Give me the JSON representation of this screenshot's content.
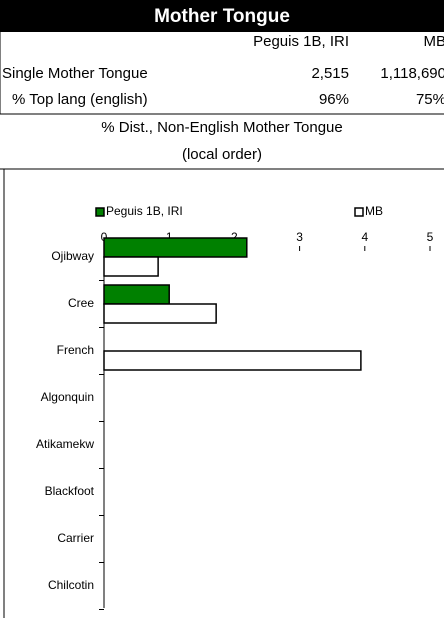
{
  "header": {
    "title": "Mother Tongue"
  },
  "table": {
    "columns": [
      "Peguis 1B, IRI",
      "MB"
    ],
    "rows": [
      [
        "Single Mother Tongue",
        "2,515",
        "1,118,690"
      ],
      [
        "% Top lang (english)",
        "96%",
        "75%"
      ]
    ]
  },
  "chart_data": {
    "type": "bar",
    "orientation": "horizontal",
    "title": "% Dist., Non-English Mother Tongue",
    "subtitle": "(local order)",
    "categories": [
      "Ojibway",
      "Cree",
      "French",
      "Algonquin",
      "Atikamekw",
      "Blackfoot",
      "Carrier",
      "Chilcotin"
    ],
    "series": [
      {
        "name": "Peguis 1B, IRI",
        "color": "#008000",
        "values": [
          2.19,
          1.0,
          0,
          0,
          0,
          0,
          0,
          0
        ]
      },
      {
        "name": "MB",
        "color": "#ffffff",
        "values": [
          0.83,
          1.72,
          3.94,
          0,
          0,
          0,
          0,
          0
        ]
      }
    ],
    "xlim": [
      0,
      5
    ],
    "xticks": [
      0,
      1,
      2,
      3,
      4,
      5
    ]
  }
}
